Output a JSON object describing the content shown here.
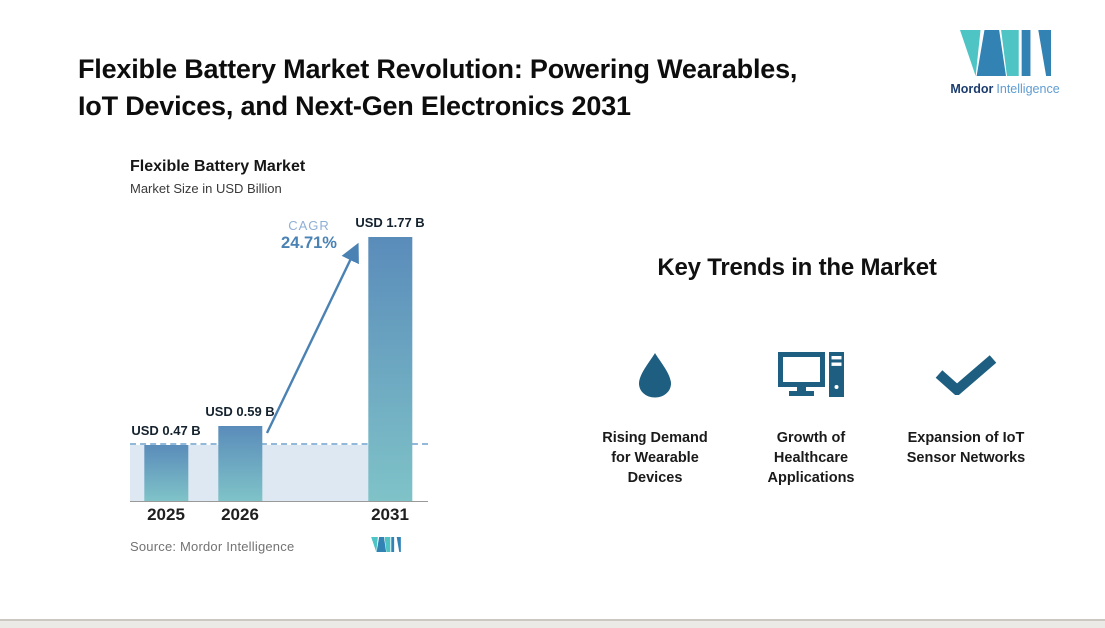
{
  "page": {
    "title_line1": "Flexible Battery Market Revolution: Powering Wearables,",
    "title_line2": "IoT Devices, and Next-Gen Electronics 2031"
  },
  "brand": {
    "name_bold": "Mordor",
    "name_light": "Intelligence"
  },
  "chart_data": {
    "type": "bar",
    "title": "Flexible Battery Market",
    "subtitle": "Market Size in USD Billion",
    "units": "USD Billion",
    "categories": [
      "2025",
      "2026",
      "2031"
    ],
    "values": [
      0.47,
      0.59,
      1.77
    ],
    "data_labels": [
      "USD 0.47 B",
      "USD 0.59 B",
      "USD 1.77 B"
    ],
    "ylim": [
      0,
      1.9
    ],
    "grid": false,
    "annotation": {
      "label": "CAGR",
      "value": "24.71%",
      "from_category": "2026",
      "to_category": "2031"
    },
    "reference_line_value": 0.47,
    "source": "Source: Mordor Intelligence"
  },
  "key_trends": {
    "heading": "Key Trends in the Market",
    "items": [
      {
        "icon": "water-drop-icon",
        "label": "Rising Demand for Wearable Devices"
      },
      {
        "icon": "desktop-computer-icon",
        "label": "Growth of Healthcare Applications"
      },
      {
        "icon": "checkmark-icon",
        "label": "Expansion of IoT Sensor Networks"
      }
    ]
  },
  "colors": {
    "accent_blue": "#4A82B4",
    "cagr_light": "#8FAFD4",
    "bar_top": "#5A8CBA",
    "bar_bottom": "#7FC3C8",
    "shade": "#DDE8F2",
    "dash": "#92B9D9",
    "icon": "#1E5E80",
    "logo_teal": "#4FC4C5",
    "logo_blue": "#3382B4",
    "logo_navy": "#1C3C6E",
    "logo_text_blue": "#5F9CD1"
  }
}
